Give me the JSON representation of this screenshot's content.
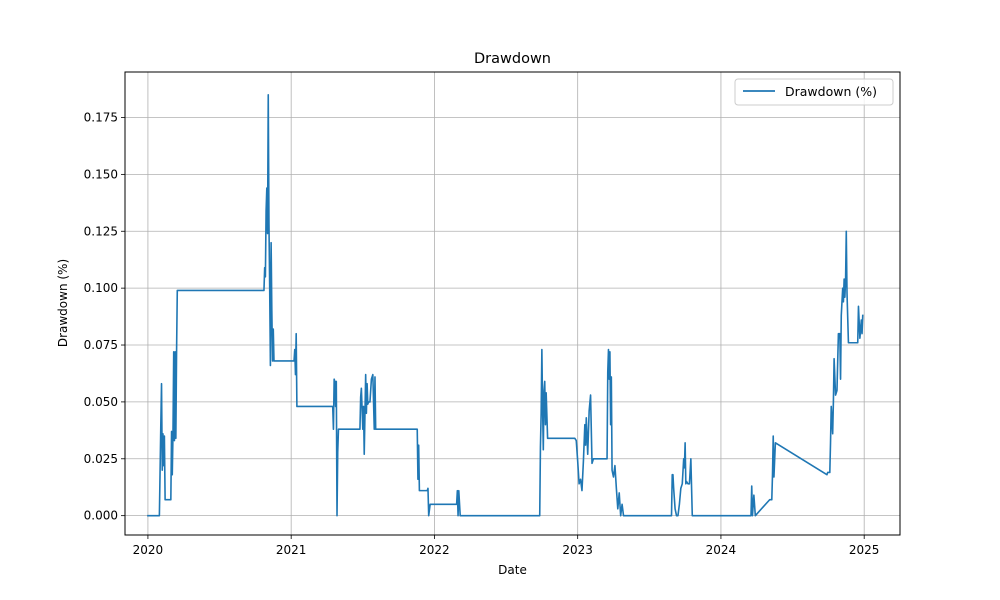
{
  "chart_data": {
    "type": "line",
    "title": "Drawdown",
    "xlabel": "Date",
    "ylabel": "Drawdown (%)",
    "xlim": [
      2019.84,
      2025.25
    ],
    "ylim": [
      -0.0085,
      0.195
    ],
    "grid": true,
    "legend_position": "top-right",
    "x_ticks": [
      2020,
      2021,
      2022,
      2023,
      2024,
      2025
    ],
    "x_tick_labels": [
      "2020",
      "2021",
      "2022",
      "2023",
      "2024",
      "2025"
    ],
    "y_ticks": [
      0.0,
      0.025,
      0.05,
      0.075,
      0.1,
      0.125,
      0.15,
      0.175
    ],
    "y_tick_labels": [
      "0.000",
      "0.025",
      "0.050",
      "0.075",
      "0.100",
      "0.125",
      "0.150",
      "0.175"
    ],
    "series": [
      {
        "name": "Drawdown (%)",
        "color": "#1f77b4",
        "x": [
          2020.0,
          2020.08,
          2020.09,
          2020.095,
          2020.1,
          2020.105,
          2020.11,
          2020.115,
          2020.12,
          2020.13,
          2020.14,
          2020.16,
          2020.165,
          2020.17,
          2020.175,
          2020.18,
          2020.185,
          2020.19,
          2020.195,
          2020.2,
          2020.205,
          2020.21,
          2020.22,
          2020.81,
          2020.815,
          2020.82,
          2020.825,
          2020.83,
          2020.835,
          2020.84,
          2020.845,
          2020.85,
          2020.855,
          2020.86,
          2020.865,
          2020.87,
          2020.875,
          2020.88,
          2020.885,
          2020.89,
          2021.02,
          2021.025,
          2021.03,
          2021.035,
          2021.04,
          2021.05,
          2021.29,
          2021.295,
          2021.3,
          2021.305,
          2021.31,
          2021.315,
          2021.32,
          2021.325,
          2021.33,
          2021.48,
          2021.485,
          2021.49,
          2021.5,
          2021.505,
          2021.51,
          2021.52,
          2021.525,
          2021.53,
          2021.535,
          2021.54,
          2021.55,
          2021.56,
          2021.57,
          2021.58,
          2021.585,
          2021.59,
          2021.88,
          2021.885,
          2021.89,
          2021.895,
          2021.9,
          2021.95,
          2021.955,
          2021.96,
          2021.97,
          2022.15,
          2022.155,
          2022.16,
          2022.165,
          2022.17,
          2022.18,
          2022.73,
          2022.735,
          2022.74,
          2022.745,
          2022.75,
          2022.755,
          2022.76,
          2022.765,
          2022.77,
          2022.775,
          2022.78,
          2022.79,
          2022.97,
          2022.98,
          2022.99,
          2023.0,
          2023.01,
          2023.02,
          2023.03,
          2023.04,
          2023.05,
          2023.055,
          2023.06,
          2023.07,
          2023.08,
          2023.09,
          2023.1,
          2023.11,
          2023.12,
          2023.13,
          2023.2,
          2023.205,
          2023.21,
          2023.215,
          2023.22,
          2023.225,
          2023.23,
          2023.235,
          2023.24,
          2023.25,
          2023.26,
          2023.27,
          2023.28,
          2023.29,
          2023.3,
          2023.31,
          2023.32,
          2023.33,
          2023.65,
          2023.655,
          2023.66,
          2023.665,
          2023.67,
          2023.68,
          2023.69,
          2023.7,
          2023.71,
          2023.72,
          2023.73,
          2023.74,
          2023.745,
          2023.75,
          2023.755,
          2023.76,
          2023.77,
          2023.78,
          2023.79,
          2023.8,
          2023.81,
          2024.2,
          2024.205,
          2024.21,
          2024.215,
          2024.22,
          2024.23,
          2024.24,
          2024.34,
          2024.345,
          2024.35,
          2024.355,
          2024.36,
          2024.365,
          2024.37,
          2024.38,
          2024.74,
          2024.745,
          2024.75,
          2024.755,
          2024.76,
          2024.765,
          2024.77,
          2024.78,
          2024.785,
          2024.79,
          2024.8,
          2024.81,
          2024.82,
          2024.825,
          2024.83,
          2024.835,
          2024.84,
          2024.845,
          2024.85,
          2024.855,
          2024.86,
          2024.865,
          2024.87,
          2024.875,
          2024.88,
          2024.89,
          2024.9,
          2024.95,
          2024.955,
          2024.96,
          2024.97,
          2024.98,
          2024.985,
          2024.99
        ],
        "values": [
          0.0,
          0.0,
          0.04,
          0.058,
          0.02,
          0.036,
          0.022,
          0.035,
          0.007,
          0.007,
          0.007,
          0.007,
          0.037,
          0.018,
          0.036,
          0.072,
          0.033,
          0.072,
          0.034,
          0.072,
          0.099,
          0.099,
          0.099,
          0.099,
          0.109,
          0.105,
          0.134,
          0.144,
          0.124,
          0.185,
          0.128,
          0.1,
          0.066,
          0.12,
          0.09,
          0.068,
          0.082,
          0.068,
          0.068,
          0.068,
          0.068,
          0.073,
          0.062,
          0.08,
          0.048,
          0.048,
          0.048,
          0.038,
          0.06,
          0.059,
          0.048,
          0.059,
          0.0,
          0.028,
          0.038,
          0.038,
          0.052,
          0.056,
          0.038,
          0.048,
          0.027,
          0.062,
          0.045,
          0.058,
          0.049,
          0.05,
          0.05,
          0.06,
          0.062,
          0.038,
          0.061,
          0.038,
          0.038,
          0.016,
          0.031,
          0.011,
          0.011,
          0.011,
          0.012,
          0.0,
          0.005,
          0.005,
          0.005,
          0.011,
          0.0,
          0.011,
          0.0,
          0.0,
          0.0,
          0.03,
          0.045,
          0.073,
          0.048,
          0.029,
          0.055,
          0.059,
          0.04,
          0.054,
          0.034,
          0.034,
          0.034,
          0.033,
          0.024,
          0.014,
          0.016,
          0.011,
          0.024,
          0.04,
          0.031,
          0.043,
          0.027,
          0.046,
          0.053,
          0.023,
          0.025,
          0.025,
          0.025,
          0.025,
          0.025,
          0.063,
          0.073,
          0.06,
          0.072,
          0.04,
          0.061,
          0.02,
          0.017,
          0.022,
          0.012,
          0.003,
          0.01,
          0.0,
          0.005,
          0.0,
          0.0,
          0.0,
          0.0,
          0.018,
          0.018,
          0.012,
          0.003,
          0.0,
          0.0,
          0.005,
          0.012,
          0.014,
          0.025,
          0.021,
          0.032,
          0.014,
          0.015,
          0.014,
          0.014,
          0.025,
          0.0,
          0.0,
          0.0,
          0.0,
          0.0,
          0.013,
          0.0,
          0.009,
          0.0,
          0.007,
          0.007,
          0.007,
          0.007,
          0.018,
          0.035,
          0.017,
          0.032,
          0.018,
          0.019,
          0.019,
          0.019,
          0.019,
          0.032,
          0.048,
          0.036,
          0.05,
          0.069,
          0.053,
          0.055,
          0.08,
          0.08,
          0.08,
          0.06,
          0.088,
          0.094,
          0.1,
          0.094,
          0.104,
          0.096,
          0.103,
          0.125,
          0.098,
          0.076,
          0.076,
          0.076,
          0.076,
          0.092,
          0.078,
          0.086,
          0.08,
          0.088
        ]
      }
    ]
  }
}
